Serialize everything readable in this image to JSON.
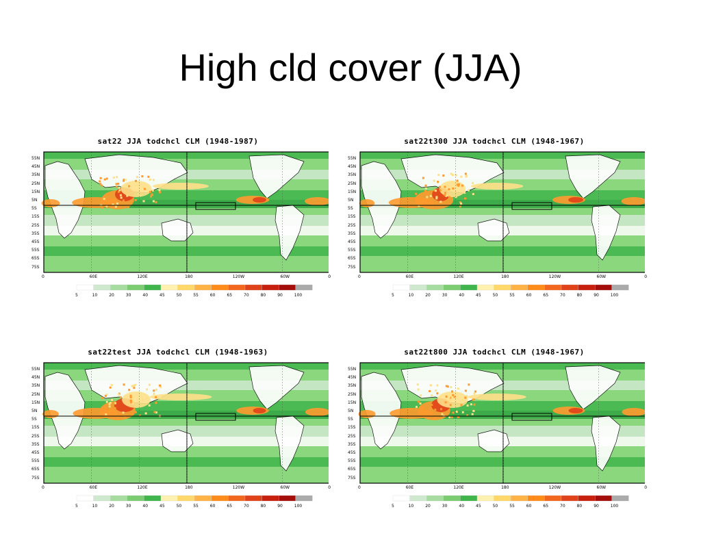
{
  "slide": {
    "title": "High cld cover (JJA)"
  },
  "panels": [
    {
      "title": "sat22 JJA todchcl CLM (1948-1987)"
    },
    {
      "title": "sat22t300 JJA todchcl CLM (1948-1967)"
    },
    {
      "title": "sat22test JJA todchcl CLM (1948-1963)"
    },
    {
      "title": "sat22t800 JJA todchcl CLM (1948-1967)"
    }
  ],
  "axes": {
    "lat_labels": [
      "55N",
      "45N",
      "35N",
      "25N",
      "15N",
      "5N",
      "5S",
      "15S",
      "25S",
      "35S",
      "45S",
      "55S",
      "65S",
      "75S"
    ],
    "lon_labels": [
      "0",
      "60E",
      "120E",
      "180",
      "120W",
      "60W",
      "0"
    ]
  },
  "colorbar": {
    "labels": [
      "5",
      "10",
      "20",
      "30",
      "40",
      "45",
      "50",
      "55",
      "60",
      "65",
      "70",
      "80",
      "90",
      "100"
    ],
    "colors": [
      "#ffffff",
      "#cfe9cf",
      "#a6dca0",
      "#7ccd72",
      "#3fb54b",
      "#fff2b0",
      "#ffd86b",
      "#ffb347",
      "#ff8c1a",
      "#f2661e",
      "#e0421a",
      "#c8200e",
      "#a30e0a",
      "#aaaaaa"
    ]
  },
  "map_colors": {
    "ocean_low": "#8ad77e",
    "green": "#3fb54b",
    "land_white": "#ffffff",
    "pale": "#cfe9cf",
    "yellow": "#ffe08a",
    "orange": "#ff9a2e",
    "red": "#e0421a"
  }
}
